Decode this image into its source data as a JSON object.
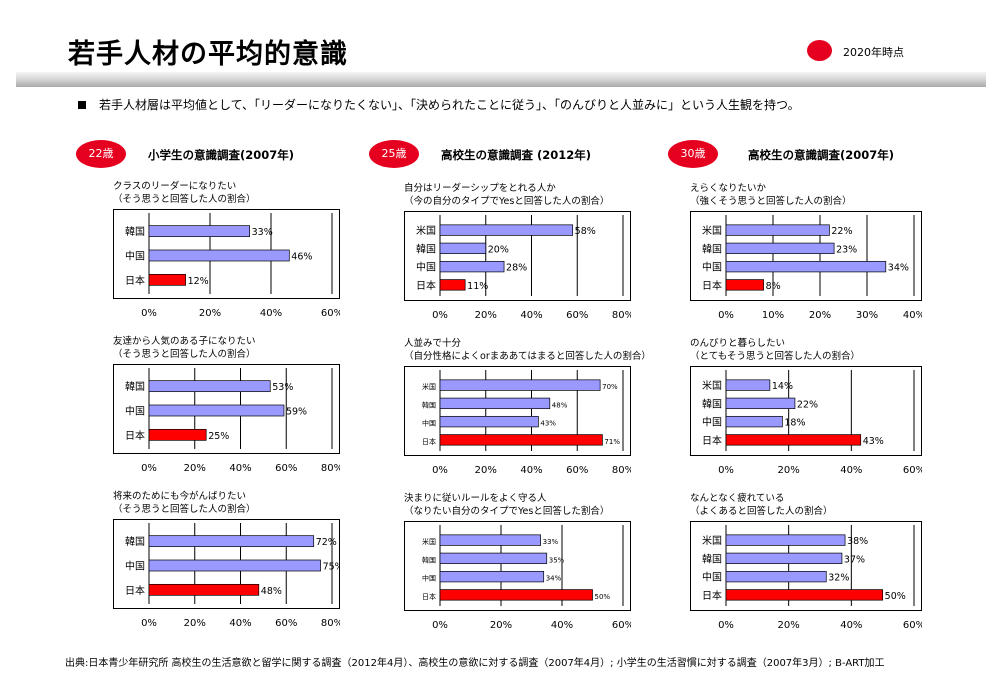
{
  "header": {
    "title": "若手人材の平均的意識",
    "badge": "2020年時点",
    "summary": "若手人材層は平均値として、「リーダーになりたくない」、「決められたことに従う」、「のんびりと人並みに」という人生観を持つ。"
  },
  "columns": [
    {
      "age": "22歳",
      "title": "小学生の意識調査(2007年)"
    },
    {
      "age": "25歳",
      "title": "高校生の意識調査 (2012年)"
    },
    {
      "age": "30歳",
      "title": "高校生の意識調査(2007年)"
    }
  ],
  "questions": [
    [
      "クラスのリーダーになりたい",
      "（そう思うと回答した人の割合）"
    ],
    [
      "友達から人気のある子になりたい",
      "（そう思うと回答した人の割合）"
    ],
    [
      "将来のためにも今がんばりたい",
      "（そう思うと回答した人の割合）"
    ],
    [
      "自分はリーダーシップをとれる人か",
      "（今の自分のタイプでYesと回答した人の割合）"
    ],
    [
      "人並みで十分",
      "（自分性格によくorまああてはまると回答した人の割合）"
    ],
    [
      "決まりに従いルールをよく守る人",
      "（なりたい自分のタイプでYesと回答した割合）"
    ],
    [
      "えらくなりたいか",
      "（強くそう思うと回答した人の割合）"
    ],
    [
      "のんびりと暮らしたい",
      "（とてもそう思うと回答した人の割合）"
    ],
    [
      "なんとなく疲れている",
      "（よくあると回答した人の割合）"
    ]
  ],
  "colors": {
    "accent": "#e6001f",
    "series": "#9999ff",
    "japan": "#ff0000"
  },
  "chart_data": [
    {
      "type": "bar",
      "categories": [
        "韓国",
        "中国",
        "日本"
      ],
      "values": [
        33,
        46,
        12
      ],
      "xlim": [
        0,
        60
      ],
      "ticks": [
        "0%",
        "20%",
        "40%",
        "60%"
      ]
    },
    {
      "type": "bar",
      "categories": [
        "韓国",
        "中国",
        "日本"
      ],
      "values": [
        53,
        59,
        25
      ],
      "xlim": [
        0,
        80
      ],
      "ticks": [
        "0%",
        "20%",
        "40%",
        "60%",
        "80%"
      ]
    },
    {
      "type": "bar",
      "categories": [
        "韓国",
        "中国",
        "日本"
      ],
      "values": [
        72,
        75,
        48
      ],
      "xlim": [
        0,
        80
      ],
      "ticks": [
        "0%",
        "20%",
        "40%",
        "60%",
        "80%"
      ]
    },
    {
      "type": "bar",
      "categories": [
        "米国",
        "韓国",
        "中国",
        "日本"
      ],
      "values": [
        58,
        20,
        28,
        11
      ],
      "xlim": [
        0,
        80
      ],
      "ticks": [
        "0%",
        "20%",
        "40%",
        "60%",
        "80%"
      ]
    },
    {
      "type": "bar",
      "categories": [
        "米国",
        "韓国",
        "中国",
        "日本"
      ],
      "values": [
        70,
        48,
        43,
        71
      ],
      "xlim": [
        0,
        80
      ],
      "ticks": [
        "0%",
        "20%",
        "40%",
        "60%",
        "80%"
      ]
    },
    {
      "type": "bar",
      "categories": [
        "米国",
        "韓国",
        "中国",
        "日本"
      ],
      "values": [
        33,
        35,
        34,
        50
      ],
      "xlim": [
        0,
        60
      ],
      "ticks": [
        "0%",
        "20%",
        "40%",
        "60%"
      ]
    },
    {
      "type": "bar",
      "categories": [
        "米国",
        "韓国",
        "中国",
        "日本"
      ],
      "values": [
        22,
        23,
        34,
        8
      ],
      "xlim": [
        0,
        40
      ],
      "ticks": [
        "0%",
        "10%",
        "20%",
        "30%",
        "40%"
      ]
    },
    {
      "type": "bar",
      "categories": [
        "米国",
        "韓国",
        "中国",
        "日本"
      ],
      "values": [
        14,
        22,
        18,
        43
      ],
      "xlim": [
        0,
        60
      ],
      "ticks": [
        "0%",
        "20%",
        "40%",
        "60%"
      ]
    },
    {
      "type": "bar",
      "categories": [
        "米国",
        "韓国",
        "中国",
        "日本"
      ],
      "values": [
        38,
        37,
        32,
        50
      ],
      "xlim": [
        0,
        60
      ],
      "ticks": [
        "0%",
        "20%",
        "40%",
        "60%"
      ]
    }
  ],
  "footer": "出典:日本青少年研究所 高校生の生活意欲と留学に関する調査（2012年4月）、高校生の意欲に対する調査（2007年4月）; 小学生の生活習慣に対する調査（2007年3月）; B-ART加工"
}
